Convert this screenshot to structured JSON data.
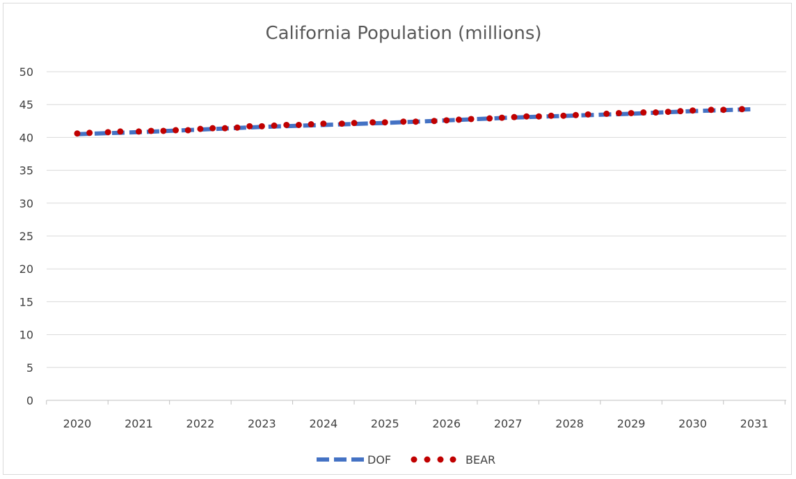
{
  "chart_data": {
    "type": "line",
    "title": "California Population (millions)",
    "xlabel": "",
    "ylabel": "",
    "ylim": [
      0,
      50
    ],
    "y_ticks": [
      "0",
      "5",
      "10",
      "15",
      "20",
      "25",
      "30",
      "35",
      "40",
      "45",
      "50"
    ],
    "x_categories": [
      "2020",
      "2021",
      "2022",
      "2023",
      "2024",
      "2025",
      "2026",
      "2027",
      "2028",
      "2029",
      "2030",
      "2031"
    ],
    "x_start": 2020.0,
    "x_end": 2031.0,
    "grid": true,
    "legend_position": "bottom",
    "series": [
      {
        "name": "DOF",
        "style": "dashed",
        "color": "#4472c4",
        "points": [
          [
            2020.0,
            40.5
          ],
          [
            2021.0,
            40.8
          ],
          [
            2022.0,
            41.2
          ],
          [
            2023.0,
            41.6
          ],
          [
            2024.0,
            41.9
          ],
          [
            2025.0,
            42.2
          ],
          [
            2026.0,
            42.6
          ],
          [
            2027.0,
            43.0
          ],
          [
            2028.0,
            43.3
          ],
          [
            2029.0,
            43.6
          ],
          [
            2030.0,
            44.0
          ],
          [
            2031.0,
            44.3
          ]
        ]
      },
      {
        "name": "BEAR",
        "style": "dotted",
        "color": "#c00000",
        "points": [
          [
            2020.0,
            40.6
          ],
          [
            2020.2,
            40.7
          ],
          [
            2020.5,
            40.8
          ],
          [
            2020.7,
            40.9
          ],
          [
            2021.0,
            40.9
          ],
          [
            2021.2,
            41.0
          ],
          [
            2021.4,
            41.0
          ],
          [
            2021.6,
            41.1
          ],
          [
            2021.8,
            41.1
          ],
          [
            2022.0,
            41.3
          ],
          [
            2022.2,
            41.4
          ],
          [
            2022.4,
            41.4
          ],
          [
            2022.6,
            41.5
          ],
          [
            2022.8,
            41.7
          ],
          [
            2023.0,
            41.7
          ],
          [
            2023.2,
            41.8
          ],
          [
            2023.4,
            41.9
          ],
          [
            2023.6,
            41.9
          ],
          [
            2023.8,
            42.0
          ],
          [
            2024.0,
            42.1
          ],
          [
            2024.3,
            42.1
          ],
          [
            2024.5,
            42.2
          ],
          [
            2024.8,
            42.3
          ],
          [
            2025.0,
            42.3
          ],
          [
            2025.3,
            42.4
          ],
          [
            2025.5,
            42.4
          ],
          [
            2025.8,
            42.5
          ],
          [
            2026.0,
            42.6
          ],
          [
            2026.2,
            42.7
          ],
          [
            2026.4,
            42.8
          ],
          [
            2026.7,
            42.9
          ],
          [
            2026.9,
            43.0
          ],
          [
            2027.1,
            43.1
          ],
          [
            2027.3,
            43.2
          ],
          [
            2027.5,
            43.2
          ],
          [
            2027.7,
            43.3
          ],
          [
            2027.9,
            43.3
          ],
          [
            2028.1,
            43.4
          ],
          [
            2028.3,
            43.5
          ],
          [
            2028.6,
            43.6
          ],
          [
            2028.8,
            43.7
          ],
          [
            2029.0,
            43.7
          ],
          [
            2029.2,
            43.8
          ],
          [
            2029.4,
            43.8
          ],
          [
            2029.6,
            43.9
          ],
          [
            2029.8,
            44.0
          ],
          [
            2030.0,
            44.1
          ],
          [
            2030.3,
            44.2
          ],
          [
            2030.5,
            44.2
          ],
          [
            2030.8,
            44.3
          ]
        ]
      }
    ]
  }
}
